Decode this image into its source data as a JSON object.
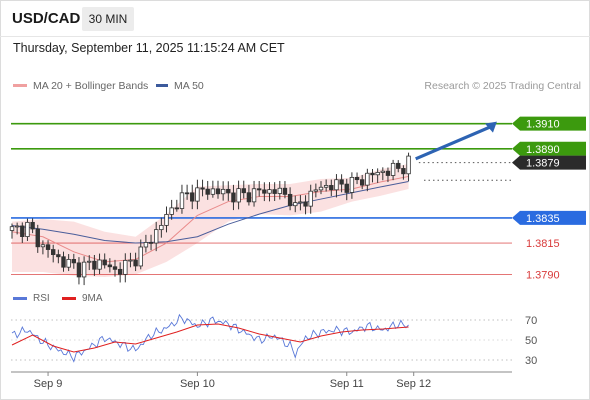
{
  "header": {
    "symbol": "USD/CAD",
    "interval": "30 MIN",
    "datetime": "Thursday, September 11, 2025 11:15:24 AM CET"
  },
  "legend": {
    "ma20_label": "MA 20 + Bollinger Bands",
    "ma50_label": "MA 50",
    "credit": "Research © 2025 Trading Central"
  },
  "colors": {
    "resistance": "#3c9a0e",
    "support": "#2a6be0",
    "minor_support": "#d83a3a",
    "current": "#2b2b2b",
    "bollinger_fill": "#fadcdc",
    "ma20": "#e98a8a",
    "ma50": "#4a5d9a",
    "arrow": "#2d63b3",
    "rsi": "#5978d8",
    "rsi_ma": "#e02020"
  },
  "levels": [
    {
      "value": 1.391,
      "label": "1.3910",
      "kind": "resistance"
    },
    {
      "value": 1.389,
      "label": "1.3890",
      "kind": "resistance"
    },
    {
      "value": 1.3879,
      "label": "1.3879",
      "kind": "current"
    },
    {
      "value": 1.3835,
      "label": "1.3835",
      "kind": "support"
    },
    {
      "value": 1.3815,
      "label": "1.3815",
      "kind": "minor_support"
    },
    {
      "value": 1.379,
      "label": "1.3790",
      "kind": "minor_support"
    }
  ],
  "chart_data": {
    "type": "candlestick",
    "y_range": [
      1.3784,
      1.3932
    ],
    "bar_count": 94,
    "x_ticks": [
      {
        "label": "Sep 9",
        "bar": 7
      },
      {
        "label": "Sep 10",
        "bar": 36
      },
      {
        "label": "Sep 11",
        "bar": 65
      },
      {
        "label": "Sep 12",
        "bar": 78
      }
    ],
    "close_path": [
      [
        0,
        1.3825
      ],
      [
        3,
        1.3828
      ],
      [
        6,
        1.3812
      ],
      [
        10,
        1.38
      ],
      [
        13,
        1.3795
      ],
      [
        17,
        1.38
      ],
      [
        20,
        1.3793
      ],
      [
        23,
        1.3799
      ],
      [
        26,
        1.3813
      ],
      [
        29,
        1.383
      ],
      [
        32,
        1.3848
      ],
      [
        35,
        1.3855
      ],
      [
        39,
        1.3857
      ],
      [
        42,
        1.3854
      ],
      [
        45,
        1.3853
      ],
      [
        48,
        1.3856
      ],
      [
        51,
        1.3857
      ],
      [
        54,
        1.3851
      ],
      [
        55,
        1.3842
      ],
      [
        57,
        1.385
      ],
      [
        60,
        1.386
      ],
      [
        63,
        1.3861
      ],
      [
        66,
        1.3862
      ],
      [
        69,
        1.3868
      ],
      [
        72,
        1.3872
      ],
      [
        75,
        1.3874
      ],
      [
        77,
        1.3879
      ]
    ],
    "ma20": [
      [
        0,
        1.3824
      ],
      [
        6,
        1.382
      ],
      [
        12,
        1.3808
      ],
      [
        18,
        1.38
      ],
      [
        24,
        1.3802
      ],
      [
        30,
        1.3815
      ],
      [
        36,
        1.3837
      ],
      [
        42,
        1.3848
      ],
      [
        48,
        1.3852
      ],
      [
        54,
        1.3852
      ],
      [
        60,
        1.3856
      ],
      [
        66,
        1.3858
      ],
      [
        72,
        1.3864
      ],
      [
        77,
        1.3868
      ]
    ],
    "bollinger_upper": [
      [
        0,
        1.3832
      ],
      [
        6,
        1.3834
      ],
      [
        12,
        1.3832
      ],
      [
        18,
        1.3824
      ],
      [
        24,
        1.382
      ],
      [
        30,
        1.3838
      ],
      [
        36,
        1.386
      ],
      [
        42,
        1.3861
      ],
      [
        48,
        1.3862
      ],
      [
        54,
        1.3862
      ],
      [
        60,
        1.3866
      ],
      [
        66,
        1.3867
      ],
      [
        72,
        1.3874
      ],
      [
        77,
        1.3878
      ]
    ],
    "bollinger_lower": [
      [
        0,
        1.3792
      ],
      [
        6,
        1.3792
      ],
      [
        12,
        1.3789
      ],
      [
        18,
        1.3788
      ],
      [
        24,
        1.379
      ],
      [
        30,
        1.38
      ],
      [
        36,
        1.3815
      ],
      [
        42,
        1.3832
      ],
      [
        48,
        1.3838
      ],
      [
        54,
        1.3837
      ],
      [
        60,
        1.384
      ],
      [
        66,
        1.3848
      ],
      [
        72,
        1.3853
      ],
      [
        77,
        1.3858
      ]
    ],
    "ma50": [
      [
        0,
        1.3829
      ],
      [
        6,
        1.3826
      ],
      [
        12,
        1.3822
      ],
      [
        18,
        1.3817
      ],
      [
        24,
        1.3815
      ],
      [
        30,
        1.3816
      ],
      [
        36,
        1.382
      ],
      [
        42,
        1.383
      ],
      [
        48,
        1.3838
      ],
      [
        54,
        1.3845
      ],
      [
        60,
        1.385
      ],
      [
        66,
        1.3855
      ],
      [
        72,
        1.386
      ],
      [
        77,
        1.3864
      ]
    ],
    "forecast_arrow": {
      "from": [
        78,
        1.3882
      ],
      "to": [
        93,
        1.391
      ]
    },
    "rsi": {
      "ticks": [
        70,
        50,
        30
      ],
      "range": [
        22,
        78
      ],
      "legend": [
        "RSI",
        "9MA"
      ],
      "rsi_path": [
        [
          0,
          55
        ],
        [
          3,
          60
        ],
        [
          6,
          48
        ],
        [
          9,
          40
        ],
        [
          12,
          33
        ],
        [
          15,
          42
        ],
        [
          18,
          52
        ],
        [
          21,
          46
        ],
        [
          24,
          40
        ],
        [
          27,
          55
        ],
        [
          30,
          62
        ],
        [
          33,
          72
        ],
        [
          36,
          64
        ],
        [
          39,
          70
        ],
        [
          42,
          66
        ],
        [
          45,
          58
        ],
        [
          48,
          50
        ],
        [
          51,
          54
        ],
        [
          54,
          44
        ],
        [
          55,
          36
        ],
        [
          57,
          52
        ],
        [
          60,
          58
        ],
        [
          63,
          60
        ],
        [
          66,
          58
        ],
        [
          69,
          64
        ],
        [
          72,
          60
        ],
        [
          75,
          66
        ],
        [
          77,
          64
        ]
      ],
      "ma_path": [
        [
          0,
          45
        ],
        [
          4,
          55
        ],
        [
          8,
          44
        ],
        [
          12,
          38
        ],
        [
          16,
          42
        ],
        [
          20,
          48
        ],
        [
          24,
          46
        ],
        [
          28,
          52
        ],
        [
          32,
          58
        ],
        [
          36,
          65
        ],
        [
          40,
          66
        ],
        [
          44,
          62
        ],
        [
          48,
          56
        ],
        [
          52,
          52
        ],
        [
          56,
          48
        ],
        [
          60,
          54
        ],
        [
          64,
          58
        ],
        [
          68,
          60
        ],
        [
          72,
          61
        ],
        [
          77,
          63
        ]
      ]
    }
  }
}
